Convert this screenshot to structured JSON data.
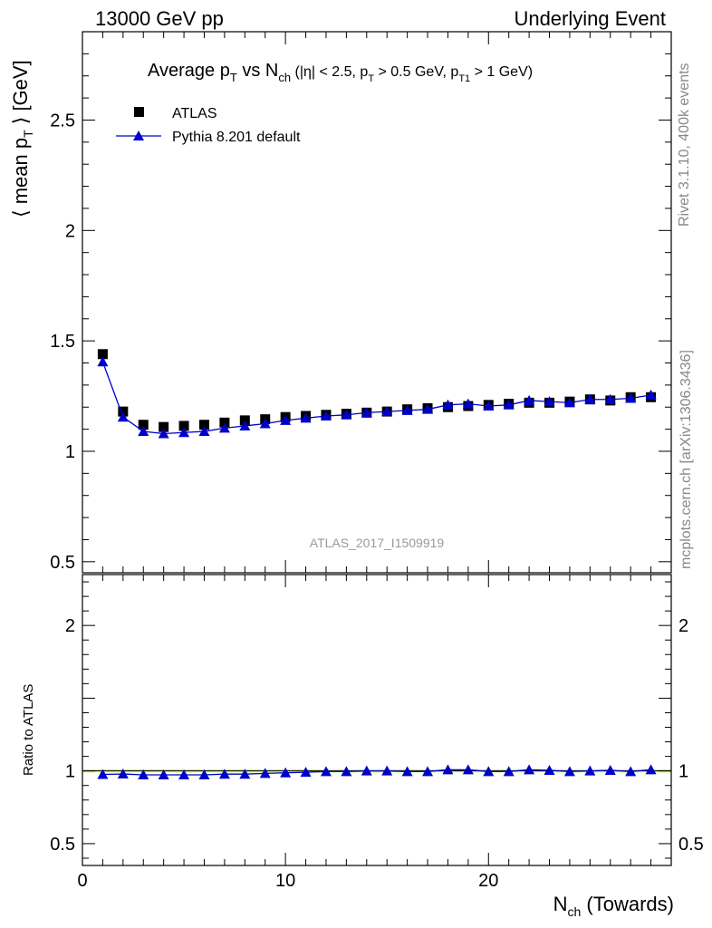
{
  "header": {
    "left": "13000 GeV pp",
    "right": "Underlying Event"
  },
  "side_labels": {
    "rivet": "Rivet 3.1.10,  400k events",
    "mcplots": "mcplots.cern.ch [arXiv:1306.3436]"
  },
  "watermark": "ATLAS_2017_I1509919",
  "chart_data": [
    {
      "type": "scatter",
      "title_parts": {
        "main": "Average p",
        "sub_t": "T",
        "vs": " vs N",
        "sub_ch": "ch",
        "cuts_1": " (|η| < 2.5, p",
        "cuts_2": " > 0.5 GeV, p",
        "sub_t1": "T1",
        "cuts_3": " > 1 GeV)"
      },
      "ylabel": "⟨ mean p",
      "ylabel_sub": "T",
      "ylabel_end": " ⟩ [GeV]",
      "ylim": [
        0.45,
        2.9
      ],
      "xlim": [
        0,
        29
      ],
      "yticks": [
        0.5,
        1,
        1.5,
        2,
        2.5
      ],
      "yticklabels": [
        "0.5",
        "1",
        "1.5",
        "2",
        "2.5"
      ],
      "legend_placement": "top-left",
      "series": [
        {
          "name": "ATLAS",
          "marker": "square",
          "color": "#000000",
          "x": [
            1,
            2,
            3,
            4,
            5,
            6,
            7,
            8,
            9,
            10,
            11,
            12,
            13,
            14,
            15,
            16,
            17,
            18,
            19,
            20,
            21,
            22,
            23,
            24,
            25,
            26,
            27,
            28
          ],
          "y": [
            1.44,
            1.18,
            1.12,
            1.11,
            1.115,
            1.12,
            1.13,
            1.14,
            1.145,
            1.155,
            1.16,
            1.165,
            1.17,
            1.175,
            1.18,
            1.19,
            1.195,
            1.2,
            1.205,
            1.21,
            1.215,
            1.22,
            1.22,
            1.225,
            1.235,
            1.23,
            1.245,
            1.245
          ]
        },
        {
          "name": "Pythia 8.201 default",
          "marker": "triangle",
          "color": "#0000cc",
          "x": [
            1,
            2,
            3,
            4,
            5,
            6,
            7,
            8,
            9,
            10,
            11,
            12,
            13,
            14,
            15,
            16,
            17,
            18,
            19,
            20,
            21,
            22,
            23,
            24,
            25,
            26,
            27,
            28
          ],
          "y": [
            1.405,
            1.155,
            1.09,
            1.08,
            1.085,
            1.09,
            1.105,
            1.115,
            1.125,
            1.14,
            1.15,
            1.16,
            1.165,
            1.175,
            1.18,
            1.185,
            1.19,
            1.21,
            1.215,
            1.205,
            1.21,
            1.23,
            1.225,
            1.22,
            1.235,
            1.235,
            1.24,
            1.255
          ]
        }
      ]
    },
    {
      "type": "scatter",
      "ylabel": "Ratio to ATLAS",
      "xlabel": "N",
      "xlabel_sub": "ch",
      "xlabel_end": " (Towards)",
      "ylim": [
        0.35,
        2.35
      ],
      "xlim": [
        0,
        29
      ],
      "yticks": [
        0.5,
        1,
        2
      ],
      "yticklabels": [
        "0.5",
        "1",
        "2"
      ],
      "xticks": [
        0,
        10,
        20
      ],
      "xticklabels": [
        "0",
        "10",
        "20"
      ],
      "band_color": "#ccff66",
      "series": [
        {
          "name": "Pythia 8.201 default",
          "marker": "triangle",
          "color": "#0000cc",
          "x": [
            1,
            2,
            3,
            4,
            5,
            6,
            7,
            8,
            9,
            10,
            11,
            12,
            13,
            14,
            15,
            16,
            17,
            18,
            19,
            20,
            21,
            22,
            23,
            24,
            25,
            26,
            27,
            28
          ],
          "y": [
            0.976,
            0.979,
            0.973,
            0.973,
            0.973,
            0.973,
            0.978,
            0.978,
            0.983,
            0.987,
            0.991,
            0.996,
            0.996,
            1.0,
            1.0,
            0.996,
            0.996,
            1.008,
            1.008,
            0.996,
            0.996,
            1.008,
            1.004,
            0.996,
            1.0,
            1.004,
            0.996,
            1.008
          ]
        }
      ]
    }
  ]
}
